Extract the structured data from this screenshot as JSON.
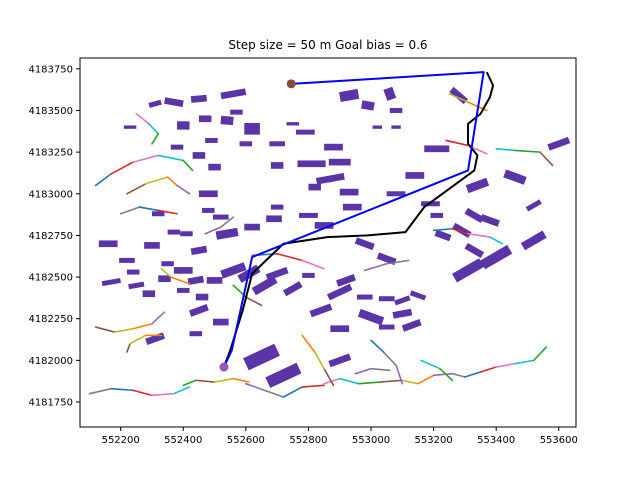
{
  "chart_data": {
    "type": "scatter",
    "title": "Step size = 50 m     Goal bias = 0.6",
    "xlabel": "",
    "ylabel": "",
    "xlim": [
      552070,
      553655
    ],
    "ylim": [
      4181600,
      4183815
    ],
    "xticks": [
      552200,
      552400,
      552600,
      552800,
      553000,
      553200,
      553400,
      553600
    ],
    "yticks": [
      4181750,
      4182000,
      4182250,
      4182500,
      4182750,
      4183000,
      4183250,
      4183500,
      4183750
    ],
    "grid": false,
    "colors": {
      "building": "#5b34a8",
      "final_path": "#0000ff",
      "rrt_path": "#000000",
      "start_marker": "#9a55b7",
      "goal_marker": "#8b4a3a",
      "branch_palette": [
        "#1f77b4",
        "#ff7f0e",
        "#2ca02c",
        "#d62728",
        "#9467bd",
        "#8c564b",
        "#e377c2",
        "#7f7f7f",
        "#bcbd22",
        "#17becf"
      ]
    },
    "start_point": [
      552530,
      4181960
    ],
    "goal_point": [
      552745,
      4183660
    ],
    "final_path": [
      [
        552530,
        4181960
      ],
      [
        552555,
        4182060
      ],
      [
        552620,
        4182620
      ],
      [
        553310,
        4183140
      ],
      [
        553360,
        4183730
      ],
      [
        552745,
        4183660
      ]
    ],
    "rrt_path": [
      [
        552530,
        4181960
      ],
      [
        552550,
        4182060
      ],
      [
        552590,
        4182300
      ],
      [
        552620,
        4182520
      ],
      [
        552720,
        4182700
      ],
      [
        552860,
        4182740
      ],
      [
        552990,
        4182750
      ],
      [
        553110,
        4182770
      ],
      [
        553170,
        4182920
      ],
      [
        553250,
        4183030
      ],
      [
        553330,
        4183140
      ],
      [
        553340,
        4183230
      ],
      [
        553310,
        4183300
      ],
      [
        553310,
        4183420
      ],
      [
        553350,
        4183480
      ],
      [
        553380,
        4183580
      ],
      [
        553390,
        4183650
      ],
      [
        553370,
        4183730
      ]
    ],
    "buildings": [
      [
        552310,
        4183540,
        40,
        30,
        15
      ],
      [
        552370,
        4183550,
        60,
        40,
        -10
      ],
      [
        552450,
        4183570,
        50,
        40,
        5
      ],
      [
        552560,
        4183600,
        80,
        40,
        10
      ],
      [
        552400,
        4183410,
        40,
        50,
        0
      ],
      [
        552470,
        4183450,
        40,
        40,
        0
      ],
      [
        552540,
        4183440,
        40,
        50,
        -5
      ],
      [
        552620,
        4183390,
        50,
        70,
        0
      ],
      [
        552750,
        4183420,
        40,
        20,
        0
      ],
      [
        552930,
        4183590,
        60,
        60,
        10
      ],
      [
        552990,
        4183530,
        40,
        50,
        -10
      ],
      [
        553060,
        4183600,
        30,
        70,
        20
      ],
      [
        553080,
        4183500,
        40,
        30,
        0
      ],
      [
        553280,
        4183590,
        60,
        40,
        -40
      ],
      [
        553020,
        4183400,
        30,
        20,
        0
      ],
      [
        553080,
        4183400,
        30,
        20,
        0
      ],
      [
        552600,
        4183300,
        40,
        30,
        0
      ],
      [
        552700,
        4183300,
        50,
        30,
        0
      ],
      [
        552450,
        4183230,
        40,
        40,
        0
      ],
      [
        552500,
        4183160,
        40,
        40,
        0
      ],
      [
        552810,
        4183180,
        90,
        40,
        0
      ],
      [
        552870,
        4183090,
        90,
        40,
        10
      ],
      [
        552930,
        4183010,
        60,
        40,
        0
      ],
      [
        552480,
        4183000,
        60,
        40,
        0
      ],
      [
        552520,
        4182860,
        50,
        30,
        0
      ],
      [
        552540,
        4182760,
        70,
        50,
        10
      ],
      [
        552620,
        4182800,
        50,
        40,
        0
      ],
      [
        552800,
        4182870,
        60,
        30,
        0
      ],
      [
        552850,
        4182810,
        60,
        40,
        0
      ],
      [
        552900,
        4183190,
        70,
        40,
        0
      ],
      [
        552880,
        4183280,
        60,
        40,
        0
      ],
      [
        553210,
        4183270,
        80,
        40,
        0
      ],
      [
        553080,
        4183000,
        60,
        30,
        0
      ],
      [
        553140,
        4183110,
        60,
        40,
        0
      ],
      [
        553340,
        4183050,
        70,
        50,
        20
      ],
      [
        553460,
        4183100,
        70,
        50,
        -20
      ],
      [
        553520,
        4182930,
        50,
        30,
        30
      ],
      [
        553600,
        4183300,
        70,
        40,
        20
      ],
      [
        553330,
        4182870,
        60,
        40,
        -30
      ],
      [
        553380,
        4182840,
        60,
        40,
        -20
      ],
      [
        553290,
        4182780,
        60,
        40,
        -30
      ],
      [
        553520,
        4182720,
        80,
        50,
        30
      ],
      [
        553310,
        4182540,
        100,
        60,
        30
      ],
      [
        553400,
        4182620,
        100,
        60,
        30
      ],
      [
        553330,
        4182660,
        60,
        40,
        -30
      ],
      [
        553230,
        4182750,
        50,
        40,
        -20
      ],
      [
        552980,
        4182700,
        60,
        40,
        -20
      ],
      [
        553050,
        4182610,
        60,
        40,
        -20
      ],
      [
        552920,
        4182480,
        60,
        40,
        20
      ],
      [
        552900,
        4182410,
        80,
        40,
        25
      ],
      [
        552980,
        4182380,
        50,
        30,
        0
      ],
      [
        553050,
        4182370,
        50,
        30,
        0
      ],
      [
        553100,
        4182360,
        50,
        30,
        20
      ],
      [
        553150,
        4182390,
        50,
        30,
        -20
      ],
      [
        553000,
        4182260,
        80,
        50,
        -20
      ],
      [
        553100,
        4182280,
        60,
        40,
        10
      ],
      [
        553130,
        4182210,
        60,
        40,
        20
      ],
      [
        553050,
        4182200,
        50,
        30,
        0
      ],
      [
        552900,
        4182190,
        60,
        40,
        0
      ],
      [
        552840,
        4182300,
        70,
        40,
        20
      ],
      [
        552750,
        4182430,
        60,
        40,
        30
      ],
      [
        552800,
        4182510,
        40,
        30,
        0
      ],
      [
        552700,
        4182520,
        70,
        40,
        20
      ],
      [
        552660,
        4182450,
        80,
        50,
        30
      ],
      [
        552610,
        4182520,
        70,
        50,
        30
      ],
      [
        552560,
        4182540,
        80,
        50,
        20
      ],
      [
        552500,
        4182480,
        50,
        40,
        0
      ],
      [
        552440,
        4182480,
        50,
        40,
        10
      ],
      [
        552400,
        4182540,
        60,
        40,
        0
      ],
      [
        552460,
        4182380,
        40,
        40,
        0
      ],
      [
        552400,
        4182420,
        40,
        30,
        0
      ],
      [
        552340,
        4182490,
        40,
        40,
        0
      ],
      [
        552250,
        4182450,
        50,
        30,
        10
      ],
      [
        552170,
        4182470,
        60,
        30,
        10
      ],
      [
        552290,
        4182400,
        40,
        40,
        0
      ],
      [
        552220,
        4182600,
        50,
        30,
        0
      ],
      [
        552160,
        4182700,
        60,
        40,
        0
      ],
      [
        552300,
        4182690,
        50,
        40,
        0
      ],
      [
        552350,
        4182580,
        40,
        30,
        0
      ],
      [
        552450,
        4182660,
        50,
        40,
        10
      ],
      [
        552450,
        4182300,
        60,
        40,
        20
      ],
      [
        552440,
        4182160,
        40,
        30,
        0
      ],
      [
        552310,
        4182130,
        60,
        40,
        20
      ],
      [
        552520,
        4182230,
        50,
        40,
        0
      ],
      [
        552650,
        4182020,
        110,
        80,
        25
      ],
      [
        552720,
        4181910,
        110,
        70,
        25
      ],
      [
        552900,
        4182000,
        70,
        40,
        20
      ],
      [
        552490,
        4183320,
        40,
        30,
        0
      ],
      [
        553190,
        4182940,
        60,
        30,
        0
      ],
      [
        553210,
        4182870,
        40,
        30,
        0
      ],
      [
        552700,
        4183170,
        40,
        40,
        0
      ],
      [
        552820,
        4183040,
        40,
        40,
        0
      ],
      [
        552230,
        4183400,
        40,
        20,
        0
      ],
      [
        552380,
        4183280,
        40,
        30,
        0
      ],
      [
        552570,
        4183490,
        40,
        30,
        0
      ],
      [
        552790,
        4183370,
        60,
        30,
        0
      ],
      [
        552320,
        4182880,
        40,
        30,
        0
      ],
      [
        552410,
        4182760,
        40,
        30,
        0
      ],
      [
        552480,
        4182900,
        40,
        30,
        0
      ],
      [
        552700,
        4182920,
        40,
        30,
        0
      ],
      [
        552690,
        4182850,
        50,
        40,
        0
      ],
      [
        552940,
        4182920,
        60,
        40,
        0
      ],
      [
        552240,
        4182530,
        40,
        30,
        0
      ],
      [
        552370,
        4182770,
        40,
        30,
        0
      ]
    ],
    "branches": [
      [
        [
          552120,
          4183050
        ],
        [
          552170,
          4183120
        ],
        [
          552240,
          4183190
        ],
        [
          552320,
          4183230
        ],
        [
          552400,
          4183200
        ],
        [
          552430,
          4183140
        ]
      ],
      [
        [
          552220,
          4183000
        ],
        [
          552280,
          4183060
        ],
        [
          552350,
          4183100
        ],
        [
          552380,
          4183050
        ],
        [
          552420,
          4183000
        ]
      ],
      [
        [
          552200,
          4182880
        ],
        [
          552260,
          4182920
        ],
        [
          552320,
          4182900
        ],
        [
          552380,
          4182880
        ]
      ],
      [
        [
          552250,
          4183480
        ],
        [
          552290,
          4183420
        ],
        [
          552320,
          4183360
        ],
        [
          552300,
          4183300
        ]
      ],
      [
        [
          552120,
          4182200
        ],
        [
          552180,
          4182170
        ],
        [
          552240,
          4182190
        ],
        [
          552300,
          4182220
        ],
        [
          552340,
          4182290
        ]
      ],
      [
        [
          552100,
          4181800
        ],
        [
          552170,
          4181830
        ],
        [
          552240,
          4181820
        ],
        [
          552300,
          4181790
        ],
        [
          552370,
          4181800
        ],
        [
          552420,
          4181840
        ]
      ],
      [
        [
          552400,
          4181850
        ],
        [
          552440,
          4181880
        ],
        [
          552500,
          4181870
        ],
        [
          552560,
          4181890
        ],
        [
          552610,
          4181870
        ]
      ],
      [
        [
          552600,
          4181860
        ],
        [
          552660,
          4181820
        ],
        [
          552720,
          4181780
        ],
        [
          552780,
          4181840
        ],
        [
          552850,
          4181850
        ]
      ],
      [
        [
          552850,
          4181860
        ],
        [
          552900,
          4181890
        ],
        [
          552960,
          4181860
        ],
        [
          553030,
          4181870
        ],
        [
          553100,
          4181880
        ]
      ],
      [
        [
          553100,
          4181880
        ],
        [
          553150,
          4181860
        ],
        [
          553200,
          4181910
        ],
        [
          553260,
          4181920
        ],
        [
          553300,
          4181900
        ]
      ],
      [
        [
          553300,
          4181900
        ],
        [
          553350,
          4181930
        ],
        [
          553400,
          4181960
        ],
        [
          553460,
          4181980
        ],
        [
          553520,
          4182000
        ],
        [
          553560,
          4182080
        ]
      ],
      [
        [
          552880,
          4181850
        ],
        [
          552850,
          4181950
        ],
        [
          552820,
          4182050
        ],
        [
          552780,
          4182150
        ]
      ],
      [
        [
          553100,
          4181860
        ],
        [
          553080,
          4181970
        ],
        [
          553040,
          4182050
        ],
        [
          553000,
          4182120
        ]
      ],
      [
        [
          553240,
          4183320
        ],
        [
          553310,
          4183290
        ],
        [
          553370,
          4183240
        ]
      ],
      [
        [
          553400,
          4183270
        ],
        [
          553460,
          4183260
        ],
        [
          553540,
          4183250
        ],
        [
          553580,
          4183170
        ]
      ],
      [
        [
          553250,
          4183600
        ],
        [
          553310,
          4183550
        ],
        [
          553370,
          4183500
        ]
      ],
      [
        [
          552980,
          4182540
        ],
        [
          553050,
          4182580
        ],
        [
          553120,
          4182600
        ]
      ],
      [
        [
          553200,
          4182780
        ],
        [
          553260,
          4182790
        ],
        [
          553310,
          4182760
        ],
        [
          553380,
          4182740
        ],
        [
          553420,
          4182700
        ]
      ],
      [
        [
          552560,
          4182450
        ],
        [
          552600,
          4182380
        ],
        [
          552650,
          4182330
        ]
      ],
      [
        [
          552330,
          4182550
        ],
        [
          552360,
          4182500
        ],
        [
          552420,
          4182460
        ]
      ],
      [
        [
          552470,
          4182760
        ],
        [
          552520,
          4182800
        ],
        [
          552560,
          4182860
        ]
      ],
      [
        [
          552620,
          4182630
        ],
        [
          552700,
          4182640
        ],
        [
          552780,
          4182600
        ],
        [
          552850,
          4182550
        ]
      ],
      [
        [
          553160,
          4182000
        ],
        [
          553220,
          4181950
        ],
        [
          553260,
          4181880
        ]
      ],
      [
        [
          552220,
          4182050
        ],
        [
          552230,
          4182100
        ],
        [
          552280,
          4182150
        ],
        [
          552330,
          4182150
        ]
      ],
      [
        [
          552950,
          4181920
        ],
        [
          553000,
          4181950
        ],
        [
          553060,
          4181940
        ]
      ]
    ]
  }
}
